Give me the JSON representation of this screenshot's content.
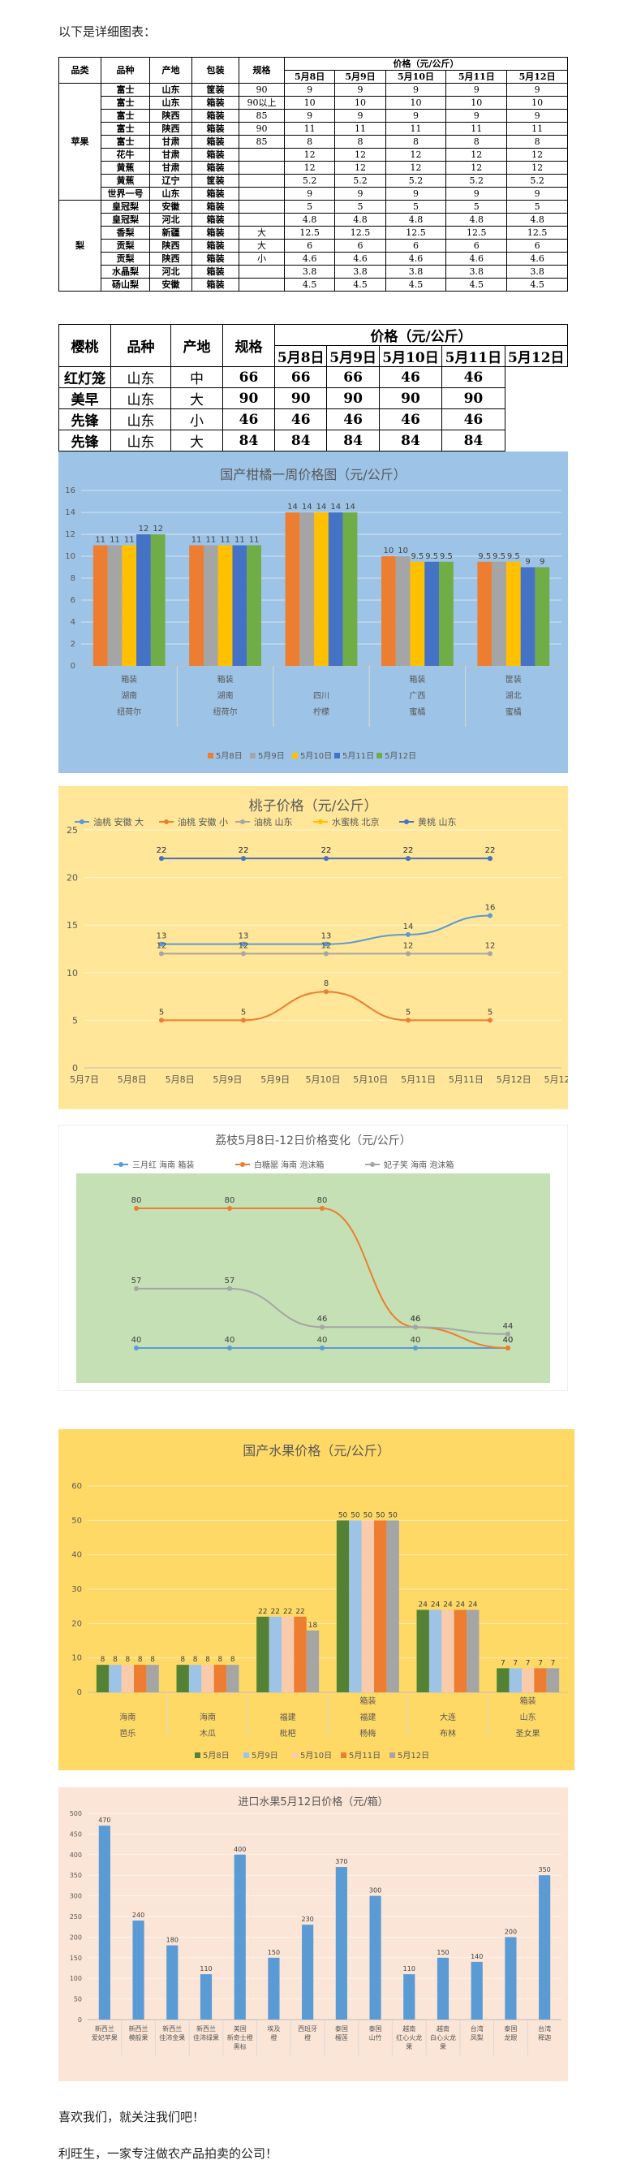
{
  "intro_text": "以下是详细图表：",
  "table1": {
    "headers": {
      "category": "品类",
      "variety": "品种",
      "origin": "产地",
      "package": "包装",
      "spec": "规格",
      "price": "价格（元/公斤）"
    },
    "dates": [
      "5月8日",
      "5月9日",
      "5月10日",
      "5月11日",
      "5月12日"
    ],
    "groups": [
      {
        "category": "苹果",
        "rows": [
          {
            "variety": "富士",
            "origin": "山东",
            "package": "筐装",
            "spec": "90",
            "prices": [
              "9",
              "9",
              "9",
              "9",
              "9"
            ]
          },
          {
            "variety": "富士",
            "origin": "山东",
            "package": "箱装",
            "spec": "90以上",
            "prices": [
              "10",
              "10",
              "10",
              "10",
              "10"
            ]
          },
          {
            "variety": "富士",
            "origin": "陕西",
            "package": "箱装",
            "spec": "85",
            "prices": [
              "9",
              "9",
              "9",
              "9",
              "9"
            ]
          },
          {
            "variety": "富士",
            "origin": "陕西",
            "package": "箱装",
            "spec": "90",
            "prices": [
              "11",
              "11",
              "11",
              "11",
              "11"
            ]
          },
          {
            "variety": "富士",
            "origin": "甘肃",
            "package": "箱装",
            "spec": "85",
            "prices": [
              "8",
              "8",
              "8",
              "8",
              "8"
            ]
          },
          {
            "variety": "花牛",
            "origin": "甘肃",
            "package": "箱装",
            "spec": "",
            "prices": [
              "12",
              "12",
              "12",
              "12",
              "12"
            ]
          },
          {
            "variety": "黄蕉",
            "origin": "甘肃",
            "package": "箱装",
            "spec": "",
            "prices": [
              "12",
              "12",
              "12",
              "12",
              "12"
            ]
          },
          {
            "variety": "黄蕉",
            "origin": "辽宁",
            "package": "筐装",
            "spec": "",
            "prices": [
              "5.2",
              "5.2",
              "5.2",
              "5.2",
              "5.2"
            ]
          },
          {
            "variety": "世界一号",
            "origin": "山东",
            "package": "箱装",
            "spec": "",
            "prices": [
              "9",
              "9",
              "9",
              "9",
              "9"
            ]
          }
        ]
      },
      {
        "category": "梨",
        "rows": [
          {
            "variety": "皇冠梨",
            "origin": "安徽",
            "package": "箱装",
            "spec": "",
            "prices": [
              "5",
              "5",
              "5",
              "5",
              "5"
            ]
          },
          {
            "variety": "皇冠梨",
            "origin": "河北",
            "package": "箱装",
            "spec": "",
            "prices": [
              "4.8",
              "4.8",
              "4.8",
              "4.8",
              "4.8"
            ]
          },
          {
            "variety": "香梨",
            "origin": "新疆",
            "package": "箱装",
            "spec": "大",
            "prices": [
              "12.5",
              "12.5",
              "12.5",
              "12.5",
              "12.5"
            ]
          },
          {
            "variety": "贡梨",
            "origin": "陕西",
            "package": "箱装",
            "spec": "大",
            "prices": [
              "6",
              "6",
              "6",
              "6",
              "6"
            ]
          },
          {
            "variety": "贡梨",
            "origin": "陕西",
            "package": "箱装",
            "spec": "小",
            "prices": [
              "4.6",
              "4.6",
              "4.6",
              "4.6",
              "4.6"
            ]
          },
          {
            "variety": "水晶梨",
            "origin": "河北",
            "package": "箱装",
            "spec": "",
            "prices": [
              "3.8",
              "3.8",
              "3.8",
              "3.8",
              "3.8"
            ]
          },
          {
            "variety": "砀山梨",
            "origin": "安徽",
            "package": "箱装",
            "spec": "",
            "prices": [
              "4.5",
              "4.5",
              "4.5",
              "4.5",
              "4.5"
            ]
          }
        ]
      }
    ]
  },
  "table2": {
    "category": "樱桃",
    "headers": {
      "variety": "品种",
      "origin": "产地",
      "spec": "规格",
      "price": "价格（元/公斤）"
    },
    "dates": [
      "5月8日",
      "5月9日",
      "5月10日",
      "5月11日",
      "5月12日"
    ],
    "rows": [
      {
        "variety": "红灯笼",
        "origin": "山东",
        "spec": "中",
        "prices": [
          "66",
          "66",
          "66",
          "46",
          "46"
        ]
      },
      {
        "variety": "美早",
        "origin": "山东",
        "spec": "大",
        "prices": [
          "90",
          "90",
          "90",
          "90",
          "90"
        ]
      },
      {
        "variety": "先锋",
        "origin": "山东",
        "spec": "小",
        "prices": [
          "46",
          "46",
          "46",
          "46",
          "46"
        ]
      },
      {
        "variety": "先锋",
        "origin": "山东",
        "spec": "大",
        "prices": [
          "84",
          "84",
          "84",
          "84",
          "84"
        ]
      }
    ]
  },
  "chart_data": [
    {
      "type": "bar",
      "title": "国产柑橘一周价格图（元/公斤）",
      "bg": "#9dc3e6",
      "ylim": [
        0,
        16
      ],
      "yticks": [
        0,
        2,
        4,
        6,
        8,
        10,
        12,
        14,
        16
      ],
      "grid": true,
      "legend_position": "bottom",
      "categories": [
        [
          "箱装",
          "湖南",
          "纽荷尔"
        ],
        [
          "箱装",
          "湖南",
          "纽荷尔"
        ],
        [
          "",
          "四川",
          "柠檬"
        ],
        [
          "箱装",
          "广西",
          "蜜橘"
        ],
        [
          "筐装",
          "湖北",
          "蜜橘"
        ]
      ],
      "series": [
        {
          "name": "5月8日",
          "color": "#ed7d31",
          "values": [
            11,
            11,
            14,
            10,
            9.5
          ]
        },
        {
          "name": "5月9日",
          "color": "#a5a5a5",
          "values": [
            11,
            11,
            14,
            10,
            9.5
          ]
        },
        {
          "name": "5月10日",
          "color": "#ffc000",
          "values": [
            11,
            11,
            14,
            9.5,
            9.5
          ]
        },
        {
          "name": "5月11日",
          "color": "#4472c4",
          "values": [
            12,
            11,
            14,
            9.5,
            9
          ]
        },
        {
          "name": "5月12日",
          "color": "#70ad47",
          "values": [
            12,
            11,
            14,
            9.5,
            9
          ]
        }
      ],
      "data_labels": true
    },
    {
      "type": "line",
      "title": "桃子价格（元/公斤）",
      "bg": "#ffe699",
      "ylim": [
        0,
        25
      ],
      "yticks": [
        0,
        5,
        10,
        15,
        20,
        25
      ],
      "grid": true,
      "legend_position": "top",
      "x_ticks": [
        "5月7日",
        "5月8日",
        "5月8日",
        "5月9日",
        "5月9日",
        "5月10日",
        "5月10日",
        "5月11日",
        "5月11日",
        "5月12日",
        "5月12日"
      ],
      "x": [
        "5月8日",
        "5月9日",
        "5月10日",
        "5月11日",
        "5月12日"
      ],
      "series": [
        {
          "name": "油桃 安徽 大",
          "color": "#5b9bd5",
          "values": [
            13,
            13,
            13,
            14,
            16
          ]
        },
        {
          "name": "油桃 安徽 小",
          "color": "#ed7d31",
          "values": [
            5,
            5,
            8,
            5,
            5
          ]
        },
        {
          "name": "油桃 山东",
          "color": "#a5a5a5",
          "values": [
            12,
            12,
            12,
            12,
            12
          ]
        },
        {
          "name": "水蜜桃 北京",
          "color": "#ffc000",
          "values": [
            22,
            22,
            22,
            22,
            22
          ]
        },
        {
          "name": "黄桃 山东",
          "color": "#4472c4",
          "values": [
            22,
            22,
            22,
            22,
            22
          ]
        }
      ],
      "data_labels": true
    },
    {
      "type": "line",
      "title": "荔枝5月8日-12日价格变化（元/公斤）",
      "bg": "#c5e0b4",
      "legend_position": "top",
      "ylim": [
        30,
        90
      ],
      "x": [
        "5月8日",
        "5月9日",
        "5月10日",
        "5月11日",
        "5月12日"
      ],
      "series": [
        {
          "name": "三月红 海南 箱装",
          "color": "#5b9bd5",
          "values": [
            40,
            40,
            40,
            40,
            40
          ]
        },
        {
          "name": "白糖罂 海南 泡沫箱",
          "color": "#ed7d31",
          "values": [
            80,
            80,
            80,
            46,
            40
          ]
        },
        {
          "name": "妃子笑 海南 泡沫箱",
          "color": "#a5a5a5",
          "values": [
            57,
            57,
            46,
            46,
            44
          ]
        }
      ],
      "data_labels": true
    },
    {
      "type": "bar",
      "title": "国产水果价格（元/公斤）",
      "bg": "#ffd966",
      "ylim": [
        0,
        60
      ],
      "yticks": [
        0,
        10,
        20,
        30,
        40,
        50,
        60
      ],
      "grid": true,
      "legend_position": "bottom",
      "categories": [
        [
          "",
          "海南",
          "芭乐"
        ],
        [
          "",
          "海南",
          "木瓜"
        ],
        [
          "",
          "福建",
          "枇杷"
        ],
        [
          "箱装",
          "福建",
          "杨梅"
        ],
        [
          "",
          "大连",
          "布林"
        ],
        [
          "箱装",
          "山东",
          "圣女果"
        ]
      ],
      "series": [
        {
          "name": "5月8日",
          "color": "#548235",
          "values": [
            8,
            8,
            22,
            50,
            24,
            7
          ]
        },
        {
          "name": "5月9日",
          "color": "#9dc3e6",
          "values": [
            8,
            8,
            22,
            50,
            24,
            7
          ]
        },
        {
          "name": "5月10日",
          "color": "#f8cbad",
          "values": [
            8,
            8,
            22,
            50,
            24,
            7
          ]
        },
        {
          "name": "5月11日",
          "color": "#ed7d31",
          "values": [
            8,
            8,
            22,
            50,
            24,
            7
          ]
        },
        {
          "name": "5月12日",
          "color": "#a5a5a5",
          "values": [
            8,
            8,
            18,
            50,
            24,
            7
          ]
        }
      ],
      "data_labels": true
    },
    {
      "type": "bar",
      "title": "进口水果5月12日价格（元/箱）",
      "bg": "#fbe5d6",
      "ylim": [
        0,
        500
      ],
      "yticks": [
        0,
        50,
        100,
        150,
        200,
        250,
        300,
        350,
        400,
        450,
        500
      ],
      "grid": true,
      "categories": [
        [
          "新西兰",
          "爱妃苹果"
        ],
        [
          "新西兰",
          "模般果"
        ],
        [
          "新西兰",
          "佳沛金果"
        ],
        [
          "新西兰",
          "佳沛绿果"
        ],
        [
          "美国",
          "新奇士橙",
          "黑标"
        ],
        [
          "埃及",
          "橙"
        ],
        [
          "西班牙",
          "橙"
        ],
        [
          "泰国",
          "榴莲"
        ],
        [
          "泰国",
          "山竹"
        ],
        [
          "越南",
          "红心火龙",
          "果"
        ],
        [
          "越南",
          "白心火龙",
          "果"
        ],
        [
          "台湾",
          "凤梨"
        ],
        [
          "泰国",
          "龙眼"
        ],
        [
          "台湾",
          "释迦"
        ]
      ],
      "series": [
        {
          "name": "",
          "color": "#5b9bd5",
          "values": [
            470,
            240,
            180,
            110,
            400,
            150,
            230,
            370,
            300,
            110,
            150,
            140,
            200,
            350
          ]
        }
      ],
      "data_labels": true
    }
  ],
  "footer": {
    "line1": "喜欢我们，就关注我们吧！",
    "line2": "利旺生，一家专注做农产品拍卖的公司！"
  }
}
